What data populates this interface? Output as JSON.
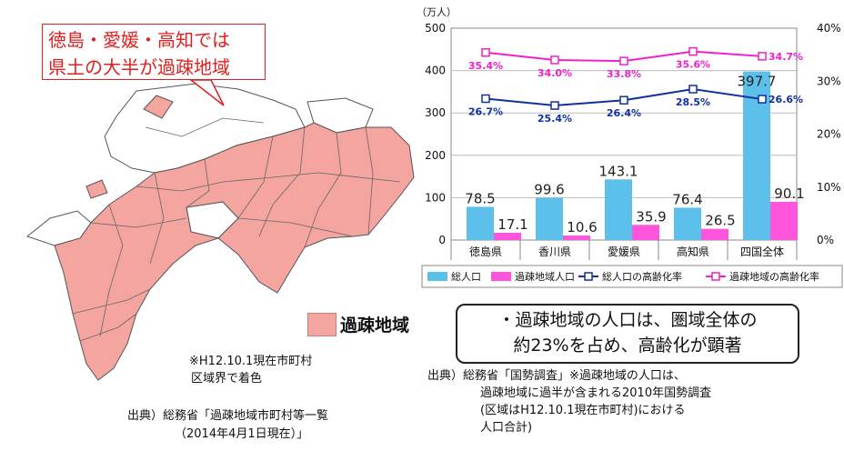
{
  "map": {
    "callout_lines": [
      "徳島・愛媛・高知では",
      "県土の大半が過疎地域"
    ],
    "legend_label": "過疎地域",
    "note_lines": [
      "※H12.10.1現在市町村",
      "区域界で着色"
    ],
    "source_lines": [
      "出典）総務省「過疎地域市町村等一覧",
      "（2014年4月1日現在）」"
    ],
    "colors": {
      "depopulated": "#f4a5a0",
      "other": "#ffffff",
      "border": "#555555"
    }
  },
  "chart_data": {
    "type": "bar",
    "categories": [
      "徳島県",
      "香川県",
      "愛媛県",
      "高知県",
      "四国全体"
    ],
    "y_unit_label": "（万人）",
    "ylim": [
      0,
      500
    ],
    "yticks": [
      0,
      100,
      200,
      300,
      400,
      500
    ],
    "y2lim": [
      0,
      40
    ],
    "y2ticks": [
      "0%",
      "10%",
      "20%",
      "30%",
      "40%"
    ],
    "bar_series": [
      {
        "name": "総人口",
        "color": "#5cc0ea",
        "values": [
          78.5,
          99.6,
          143.1,
          76.4,
          397.7
        ],
        "labels": [
          "78.5",
          "99.6",
          "143.1",
          "76.4",
          "397.7"
        ]
      },
      {
        "name": "過疎地域人口",
        "color": "#ff55dd",
        "values": [
          17.1,
          10.6,
          35.9,
          26.5,
          90.1
        ],
        "labels": [
          "17.1",
          "10.6",
          "35.9",
          "26.5",
          "90.1"
        ]
      }
    ],
    "line_series": [
      {
        "name": "総人口の高齢化率",
        "color": "#1030a0",
        "values": [
          26.7,
          25.4,
          26.4,
          28.5,
          26.6
        ],
        "labels": [
          "26.7%",
          "25.4%",
          "26.4%",
          "28.5%",
          "26.6%"
        ]
      },
      {
        "name": "過疎地域の高齢化率",
        "color": "#ee22cc",
        "values": [
          35.4,
          34.0,
          33.8,
          35.6,
          34.7
        ],
        "labels": [
          "35.4%",
          "34.0%",
          "33.8%",
          "35.6%",
          "34.7%"
        ]
      }
    ],
    "grid": true,
    "legend_position": "bottom"
  },
  "summary": {
    "lines": [
      "・過疎地域の人口は、圏域全体の",
      "約23%を占め、高齢化が顕著"
    ]
  },
  "source_right": {
    "lines": [
      "出典）総務省「国勢調査」※過疎地域の人口は、",
      "過疎地域に過半が含まれる2010年国勢調査",
      "(区域はH12.10.1現在市町村)における",
      "人口合計)"
    ]
  }
}
